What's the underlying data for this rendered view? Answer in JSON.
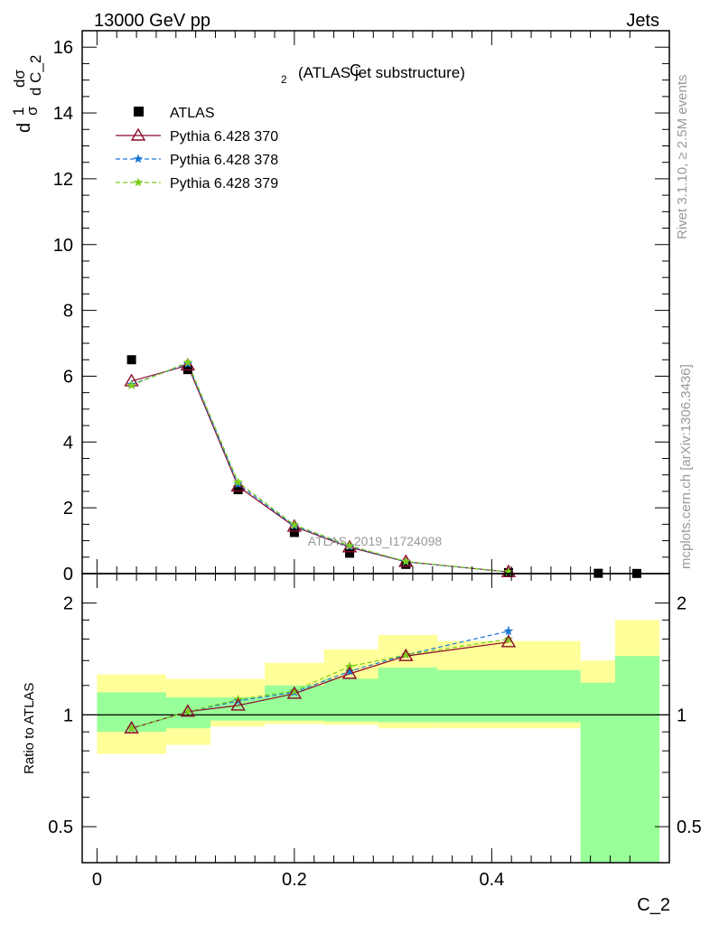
{
  "header": {
    "left": "13000 GeV pp",
    "right": "Jets",
    "side_top": "Rivet 3.1.10, ≥ 2.5M events",
    "side_bottom": "mcplots.cern.ch [arXiv:1306.3436]"
  },
  "chart_data": [
    {
      "type": "line",
      "panel": "main",
      "title": "C₂ (ATLAS jet substructure)",
      "title_main": "C",
      "title_sub": "2",
      "title_rest": "(ATLAS jet substructure)",
      "watermark": "ATLAS_2019_I1724098",
      "ylabel_parts": [
        "d",
        "1",
        "σ",
        "dσ",
        "d C_2"
      ],
      "xlim": [
        -0.015,
        0.58
      ],
      "ylim": [
        0,
        16.5
      ],
      "yticks": [
        0,
        2,
        4,
        6,
        8,
        10,
        12,
        14,
        16
      ],
      "ytick_labels": [
        "0",
        "2",
        "4",
        "6",
        "8",
        "10",
        "12",
        "14",
        "16"
      ],
      "data": {
        "name": "ATLAS",
        "x": [
          0.035,
          0.092,
          0.143,
          0.2,
          0.256,
          0.313,
          0.417,
          0.508,
          0.547
        ],
        "y": [
          6.5,
          6.2,
          2.55,
          1.25,
          0.62,
          0.28,
          0.03,
          0.01,
          0.005
        ]
      },
      "series": [
        {
          "name": "Pythia 6.428 370",
          "color": "#8b0a2a",
          "marker": "triangle-open",
          "dash": "solid",
          "x": [
            0.035,
            0.092,
            0.143,
            0.2,
            0.256,
            0.313,
            0.417
          ],
          "y": [
            5.85,
            6.33,
            2.65,
            1.43,
            0.8,
            0.36,
            0.05
          ]
        },
        {
          "name": "Pythia 6.428 378",
          "color": "#1a78d6",
          "marker": "star",
          "dash": "dashed",
          "x": [
            0.035,
            0.092,
            0.143,
            0.2,
            0.256,
            0.313,
            0.417
          ],
          "y": [
            5.75,
            6.38,
            2.72,
            1.45,
            0.83,
            0.36,
            0.05
          ]
        },
        {
          "name": "Pythia 6.428 379",
          "color": "#7ccd1a",
          "marker": "star",
          "dash": "dashed",
          "x": [
            0.035,
            0.092,
            0.143,
            0.2,
            0.256,
            0.313,
            0.417
          ],
          "y": [
            5.72,
            6.42,
            2.78,
            1.48,
            0.85,
            0.37,
            0.05
          ]
        }
      ],
      "legend": [
        "ATLAS",
        "Pythia 6.428 370",
        "Pythia 6.428 378",
        "Pythia 6.428 379"
      ],
      "legend_position": "top-left"
    },
    {
      "type": "line",
      "panel": "ratio",
      "ylabel": "Ratio to ATLAS",
      "xlabel": "C_2",
      "yscale": "log",
      "ylim": [
        0.4,
        2.4
      ],
      "yticks": [
        0.5,
        1,
        2
      ],
      "ytick_labels": [
        "0.5",
        "1",
        "2"
      ],
      "xticks": [
        0,
        0.2,
        0.4
      ],
      "xtick_labels": [
        "0",
        "0.2",
        "0.4"
      ],
      "reference_line": 1,
      "bands": [
        {
          "x0": 0.0,
          "x1": 0.07,
          "yellow": [
            0.785,
            1.285
          ],
          "green": [
            0.9,
            1.15
          ]
        },
        {
          "x0": 0.07,
          "x1": 0.115,
          "yellow": [
            0.83,
            1.25
          ],
          "green": [
            0.92,
            1.115
          ]
        },
        {
          "x0": 0.115,
          "x1": 0.17,
          "yellow": [
            0.93,
            1.25
          ],
          "green": [
            0.965,
            1.115
          ]
        },
        {
          "x0": 0.17,
          "x1": 0.23,
          "yellow": [
            0.945,
            1.38
          ],
          "green": [
            0.965,
            1.2
          ]
        },
        {
          "x0": 0.23,
          "x1": 0.285,
          "yellow": [
            0.94,
            1.5
          ],
          "green": [
            0.96,
            1.25
          ]
        },
        {
          "x0": 0.285,
          "x1": 0.345,
          "yellow": [
            0.92,
            1.64
          ],
          "green": [
            0.955,
            1.34
          ]
        },
        {
          "x0": 0.345,
          "x1": 0.49,
          "yellow": [
            0.92,
            1.58
          ],
          "green": [
            0.955,
            1.32
          ]
        },
        {
          "x0": 0.49,
          "x1": 0.525,
          "yellow": [
            0.0,
            1.4
          ],
          "green": [
            0.0,
            1.22
          ]
        },
        {
          "x0": 0.525,
          "x1": 0.57,
          "yellow": [
            0.0,
            1.8
          ],
          "green": [
            0.0,
            1.44
          ]
        }
      ],
      "series": [
        {
          "name": "Pythia 6.428 370",
          "x": [
            0.035,
            0.092,
            0.143,
            0.2,
            0.256,
            0.313,
            0.417
          ],
          "y": [
            0.92,
            1.02,
            1.06,
            1.14,
            1.29,
            1.44,
            1.57
          ]
        },
        {
          "name": "Pythia 6.428 378",
          "x": [
            0.035,
            0.092,
            0.143,
            0.2,
            0.256,
            0.313,
            0.417
          ],
          "y": [
            0.92,
            1.02,
            1.09,
            1.15,
            1.31,
            1.45,
            1.68
          ],
          "last_err": 0.05
        },
        {
          "name": "Pythia 6.428 379",
          "x": [
            0.035,
            0.092,
            0.143,
            0.2,
            0.256,
            0.313,
            0.417
          ],
          "y": [
            0.92,
            1.02,
            1.1,
            1.16,
            1.35,
            1.45,
            1.6
          ]
        }
      ]
    }
  ]
}
